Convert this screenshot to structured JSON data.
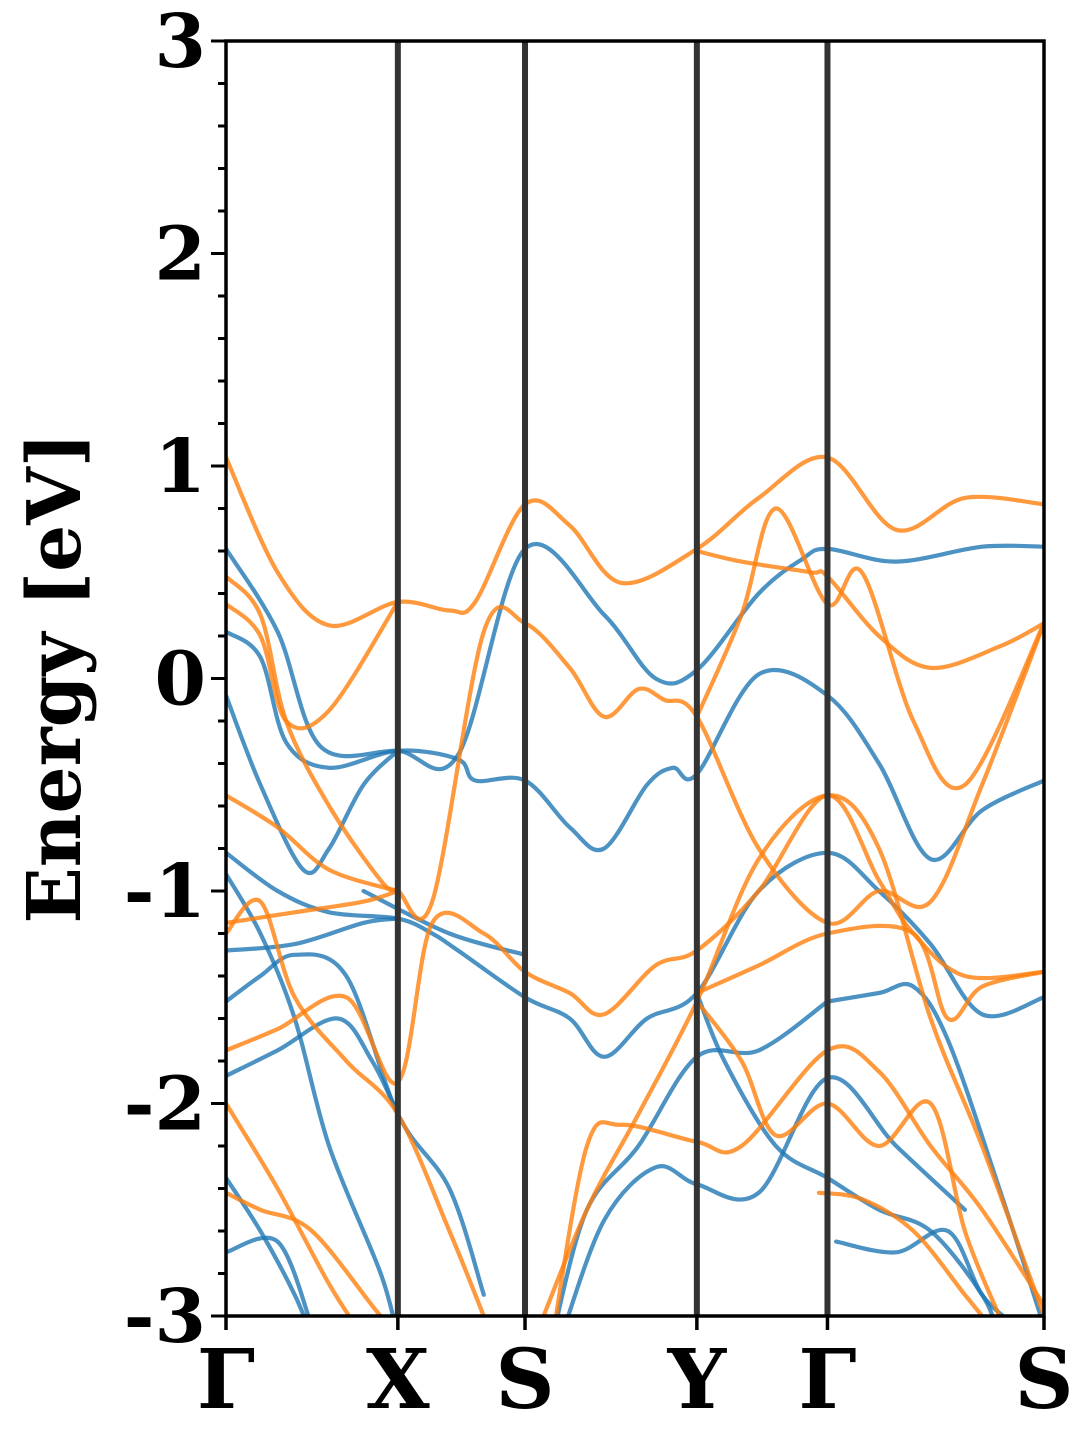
{
  "chart_data": {
    "type": "line",
    "title": "",
    "xlabel": "",
    "ylabel": "Energy [eV]",
    "ylim": [
      -3,
      3
    ],
    "yticks": [
      "3",
      "2",
      "1",
      "0",
      "-1",
      "-2",
      "-3"
    ],
    "ytick_values": [
      3,
      2,
      1,
      0,
      -1,
      -2,
      -3
    ],
    "kpath": {
      "labels": [
        "Γ",
        "X",
        "S",
        "Y",
        "Γ",
        "S"
      ],
      "positions": [
        0,
        1,
        1.74,
        2.74,
        3.5,
        4.76
      ]
    },
    "grid": false,
    "colors": {
      "blue": "#1f77b4",
      "orange": "#ff7f0e",
      "divider": "#333333"
    },
    "series": [
      {
        "color": "blue",
        "values": [
          [
            0,
            0.61
          ],
          [
            0.3,
            0.22
          ],
          [
            0.55,
            -0.32
          ],
          [
            1,
            -0.34
          ],
          [
            1.35,
            -0.36
          ],
          [
            1.74,
            0.61
          ],
          [
            2.2,
            0.3
          ],
          [
            2.5,
            0
          ],
          [
            2.74,
            0.04
          ],
          [
            3.1,
            0.4
          ],
          [
            3.35,
            0.56
          ],
          [
            3.5,
            0.61
          ],
          [
            3.9,
            0.55
          ],
          [
            4.4,
            0.62
          ],
          [
            4.76,
            0.62
          ]
        ]
      },
      {
        "color": "blue",
        "values": [
          [
            0,
            0.22
          ],
          [
            0.2,
            0.1
          ],
          [
            0.35,
            -0.3
          ],
          [
            0.6,
            -0.42
          ],
          [
            1,
            -0.34
          ],
          [
            1.35,
            -0.38
          ],
          [
            1.45,
            -0.48
          ],
          [
            1.74,
            -0.48
          ],
          [
            2.0,
            -0.7
          ],
          [
            2.2,
            -0.8
          ],
          [
            2.45,
            -0.5
          ],
          [
            2.6,
            -0.42
          ],
          [
            2.74,
            -0.45
          ],
          [
            3.1,
            0.02
          ],
          [
            3.5,
            -0.08
          ],
          [
            3.8,
            -0.4
          ],
          [
            4.1,
            -0.85
          ],
          [
            4.4,
            -0.62
          ],
          [
            4.76,
            -0.48
          ]
        ]
      },
      {
        "color": "blue",
        "values": [
          [
            0,
            -0.08
          ],
          [
            0.2,
            -0.5
          ],
          [
            0.45,
            -0.9
          ],
          [
            0.6,
            -0.8
          ],
          [
            0.8,
            -0.5
          ],
          [
            1,
            -0.34
          ]
        ]
      },
      {
        "color": "blue",
        "values": [
          [
            0,
            -0.82
          ],
          [
            0.3,
            -1.0
          ],
          [
            0.6,
            -1.1
          ],
          [
            1,
            -1.13
          ],
          [
            1.2,
            -1.2
          ],
          [
            1.35,
            -1.28
          ],
          [
            1.74,
            -1.5
          ],
          [
            2.0,
            -1.6
          ],
          [
            2.2,
            -1.78
          ],
          [
            2.45,
            -1.6
          ],
          [
            2.74,
            -1.48
          ],
          [
            3.1,
            -1.0
          ],
          [
            3.5,
            -0.82
          ],
          [
            3.8,
            -1.0
          ],
          [
            4.1,
            -1.25
          ],
          [
            4.4,
            -1.58
          ],
          [
            4.76,
            -1.5
          ]
        ]
      },
      {
        "color": "blue",
        "values": [
          [
            0,
            -1.28
          ],
          [
            0.4,
            -1.25
          ],
          [
            0.8,
            -1.15
          ],
          [
            1,
            -1.13
          ]
        ]
      },
      {
        "color": "blue",
        "values": [
          [
            0,
            -1.52
          ],
          [
            0.2,
            -1.4
          ],
          [
            0.4,
            -1.3
          ],
          [
            0.7,
            -1.4
          ],
          [
            1,
            -2.05
          ],
          [
            1.3,
            -2.4
          ],
          [
            1.5,
            -2.9
          ]
        ]
      },
      {
        "color": "blue",
        "values": [
          [
            0,
            -1.87
          ],
          [
            0.3,
            -1.75
          ],
          [
            0.65,
            -1.6
          ],
          [
            0.85,
            -1.8
          ],
          [
            1,
            -2.05
          ]
        ]
      },
      {
        "color": "blue",
        "values": [
          [
            0,
            -0.92
          ],
          [
            0.2,
            -1.2
          ],
          [
            0.4,
            -1.6
          ],
          [
            0.6,
            -2.2
          ],
          [
            0.9,
            -2.8
          ],
          [
            1,
            -3.1
          ]
        ]
      },
      {
        "color": "blue",
        "values": [
          [
            0,
            -2.35
          ],
          [
            0.2,
            -2.6
          ],
          [
            0.4,
            -2.9
          ],
          [
            0.5,
            -3.1
          ]
        ]
      },
      {
        "color": "blue",
        "values": [
          [
            0,
            -2.7
          ],
          [
            0.3,
            -2.65
          ],
          [
            0.5,
            -3.05
          ]
        ]
      },
      {
        "color": "blue",
        "values": [
          [
            2.74,
            -1.48
          ],
          [
            2.9,
            -1.8
          ],
          [
            3.2,
            -2.2
          ],
          [
            3.5,
            -2.35
          ],
          [
            3.8,
            -2.5
          ],
          [
            4.1,
            -2.6
          ],
          [
            4.4,
            -2.9
          ],
          [
            4.5,
            -3.1
          ]
        ]
      },
      {
        "color": "blue",
        "values": [
          [
            3.5,
            -1.52
          ],
          [
            3.8,
            -1.48
          ],
          [
            4.0,
            -1.45
          ],
          [
            4.2,
            -1.7
          ],
          [
            4.5,
            -2.4
          ],
          [
            4.76,
            -3.05
          ]
        ]
      },
      {
        "color": "blue",
        "values": [
          [
            1.9,
            -3.1
          ],
          [
            2.1,
            -2.5
          ],
          [
            2.4,
            -2.2
          ],
          [
            2.74,
            -1.78
          ],
          [
            3.1,
            -1.75
          ],
          [
            3.5,
            -1.52
          ]
        ]
      },
      {
        "color": "blue",
        "values": [
          [
            1.95,
            -3.1
          ],
          [
            2.2,
            -2.55
          ],
          [
            2.5,
            -2.3
          ],
          [
            2.74,
            -2.38
          ],
          [
            3.1,
            -2.42
          ],
          [
            3.5,
            -1.88
          ],
          [
            3.9,
            -2.2
          ],
          [
            4.3,
            -2.5
          ]
        ]
      },
      {
        "color": "blue",
        "values": [
          [
            3.55,
            -2.65
          ],
          [
            3.9,
            -2.7
          ],
          [
            4.2,
            -2.6
          ],
          [
            4.4,
            -2.9
          ],
          [
            4.6,
            -3.05
          ]
        ]
      },
      {
        "color": "blue",
        "values": [
          [
            0.8,
            -1.0
          ],
          [
            1.3,
            -1.2
          ],
          [
            1.74,
            -1.3
          ]
        ]
      },
      {
        "color": "orange",
        "values": [
          [
            0,
            1.04
          ],
          [
            0.3,
            0.5
          ],
          [
            0.6,
            0.25
          ],
          [
            1,
            0.36
          ],
          [
            1.3,
            0.32
          ],
          [
            1.45,
            0.36
          ],
          [
            1.74,
            0.82
          ],
          [
            2.0,
            0.72
          ],
          [
            2.3,
            0.45
          ],
          [
            2.74,
            0.61
          ],
          [
            3.1,
            0.85
          ],
          [
            3.5,
            1.04
          ],
          [
            3.9,
            0.7
          ],
          [
            4.3,
            0.85
          ],
          [
            4.76,
            0.82
          ]
        ]
      },
      {
        "color": "orange",
        "values": [
          [
            0,
            0.48
          ],
          [
            0.2,
            0.3
          ],
          [
            0.35,
            -0.2
          ],
          [
            0.6,
            -0.6
          ],
          [
            0.9,
            -0.95
          ],
          [
            1,
            -1.0
          ],
          [
            1.2,
            -1.05
          ],
          [
            1.5,
            0.22
          ],
          [
            1.74,
            0.26
          ],
          [
            2.0,
            0.05
          ],
          [
            2.2,
            -0.18
          ],
          [
            2.4,
            -0.05
          ],
          [
            2.55,
            -0.1
          ],
          [
            2.74,
            -0.18
          ],
          [
            3.1,
            -0.8
          ],
          [
            3.5,
            -1.15
          ],
          [
            3.8,
            -1.0
          ],
          [
            4.1,
            -1.05
          ],
          [
            4.4,
            -0.5
          ],
          [
            4.76,
            0.26
          ]
        ]
      },
      {
        "color": "orange",
        "values": [
          [
            0,
            0.35
          ],
          [
            0.2,
            0.2
          ],
          [
            0.35,
            -0.2
          ],
          [
            0.6,
            -0.15
          ],
          [
            1,
            0.36
          ]
        ]
      },
      {
        "color": "orange",
        "values": [
          [
            0,
            -0.55
          ],
          [
            0.3,
            -0.7
          ],
          [
            0.6,
            -0.9
          ],
          [
            1,
            -1.0
          ]
        ]
      },
      {
        "color": "orange",
        "values": [
          [
            0,
            -1.15
          ],
          [
            0.4,
            -1.1
          ],
          [
            0.8,
            -1.05
          ],
          [
            1,
            -1.0
          ]
        ]
      },
      {
        "color": "orange",
        "values": [
          [
            0,
            -1.2
          ],
          [
            0.2,
            -1.05
          ],
          [
            0.4,
            -1.5
          ],
          [
            0.7,
            -1.8
          ],
          [
            1,
            -2.05
          ],
          [
            1.3,
            -2.6
          ],
          [
            1.5,
            -3.0
          ]
        ]
      },
      {
        "color": "orange",
        "values": [
          [
            0,
            -1.75
          ],
          [
            0.3,
            -1.65
          ],
          [
            0.7,
            -1.5
          ],
          [
            1,
            -1.9
          ],
          [
            1.2,
            -1.15
          ],
          [
            1.5,
            -1.2
          ],
          [
            1.74,
            -1.38
          ],
          [
            2.0,
            -1.48
          ],
          [
            2.2,
            -1.58
          ],
          [
            2.5,
            -1.35
          ],
          [
            2.74,
            -1.28
          ],
          [
            3.1,
            -1.0
          ],
          [
            3.5,
            -0.55
          ],
          [
            3.8,
            -0.95
          ],
          [
            4.0,
            -1.2
          ],
          [
            4.3,
            -1.4
          ],
          [
            4.76,
            -1.38
          ]
        ]
      },
      {
        "color": "orange",
        "values": [
          [
            0,
            -2.0
          ],
          [
            0.3,
            -2.4
          ],
          [
            0.6,
            -2.85
          ],
          [
            0.8,
            -3.1
          ]
        ]
      },
      {
        "color": "orange",
        "values": [
          [
            0,
            -2.42
          ],
          [
            0.2,
            -2.5
          ],
          [
            0.5,
            -2.6
          ],
          [
            0.9,
            -3.0
          ],
          [
            1,
            -3.05
          ]
        ]
      },
      {
        "color": "orange",
        "values": [
          [
            2.74,
            -1.48
          ],
          [
            3.1,
            -1.35
          ],
          [
            3.5,
            -1.2
          ],
          [
            4.0,
            -1.2
          ],
          [
            4.2,
            -1.6
          ],
          [
            4.4,
            -1.45
          ],
          [
            4.76,
            -1.38
          ]
        ]
      },
      {
        "color": "orange",
        "values": [
          [
            2.74,
            -1.52
          ],
          [
            3.0,
            -1.8
          ],
          [
            3.2,
            -2.15
          ],
          [
            3.5,
            -2.0
          ],
          [
            3.8,
            -2.2
          ],
          [
            4.1,
            -2.0
          ],
          [
            4.3,
            -2.6
          ],
          [
            4.5,
            -3.0
          ]
        ]
      },
      {
        "color": "orange",
        "values": [
          [
            1.9,
            -3.1
          ],
          [
            2.1,
            -2.2
          ],
          [
            2.3,
            -2.1
          ],
          [
            2.74,
            -2.18
          ],
          [
            3.0,
            -2.2
          ],
          [
            3.5,
            -1.75
          ],
          [
            3.8,
            -1.85
          ],
          [
            4.1,
            -2.2
          ],
          [
            4.4,
            -2.5
          ],
          [
            4.76,
            -2.95
          ]
        ]
      },
      {
        "color": "orange",
        "values": [
          [
            1.8,
            -3.1
          ],
          [
            2.1,
            -2.5
          ],
          [
            2.4,
            -2.05
          ],
          [
            2.74,
            -1.52
          ],
          [
            3.1,
            -0.85
          ],
          [
            3.5,
            -0.55
          ],
          [
            3.8,
            -0.8
          ],
          [
            4.1,
            -1.6
          ],
          [
            4.4,
            -2.2
          ],
          [
            4.76,
            -3.0
          ]
        ]
      },
      {
        "color": "orange",
        "values": [
          [
            2.74,
            0.6
          ],
          [
            3.0,
            0.55
          ],
          [
            3.4,
            0.5
          ],
          [
            3.5,
            0.48
          ],
          [
            3.8,
            0.2
          ],
          [
            4.1,
            0.05
          ],
          [
            4.5,
            0.15
          ],
          [
            4.76,
            0.26
          ]
        ]
      },
      {
        "color": "orange",
        "values": [
          [
            2.74,
            -0.18
          ],
          [
            3.0,
            0.3
          ],
          [
            3.2,
            0.8
          ],
          [
            3.5,
            0.35
          ],
          [
            3.7,
            0.5
          ],
          [
            4.0,
            -0.2
          ],
          [
            4.3,
            -0.5
          ],
          [
            4.76,
            0.26
          ]
        ]
      },
      {
        "color": "orange",
        "values": [
          [
            3.45,
            -2.42
          ],
          [
            3.7,
            -2.45
          ],
          [
            4.0,
            -2.6
          ],
          [
            4.3,
            -2.9
          ],
          [
            4.45,
            -3.05
          ]
        ]
      }
    ]
  }
}
